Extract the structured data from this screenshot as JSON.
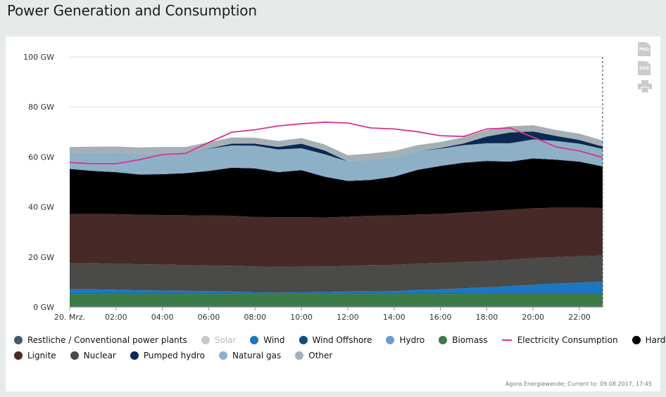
{
  "title": "Power Generation and Consumption",
  "source_note": "Agora Energiewende; Current to: 09.08.2017, 17:45",
  "export": {
    "png_label": "PNG",
    "svg_label": "SVG"
  },
  "chart_data": {
    "type": "area",
    "stacked": true,
    "title": "Power Generation and Consumption",
    "ylabel": "",
    "xlabel": "",
    "ylim": [
      0,
      100
    ],
    "yticks": [
      0,
      20,
      40,
      60,
      80,
      100
    ],
    "ytick_labels": [
      "0 GW",
      "20 GW",
      "40 GW",
      "60 GW",
      "80 GW",
      "100 GW"
    ],
    "xticks": [
      0,
      2,
      4,
      6,
      8,
      10,
      12,
      14,
      16,
      18,
      20,
      22
    ],
    "xtick_labels": [
      "20. Mrz.",
      "02:00",
      "04:00",
      "06:00",
      "08:00",
      "10:00",
      "12:00",
      "14:00",
      "16:00",
      "18:00",
      "20:00",
      "22:00"
    ],
    "x": [
      0,
      1,
      2,
      3,
      4,
      5,
      6,
      7,
      8,
      9,
      10,
      11,
      12,
      13,
      14,
      15,
      16,
      17,
      18,
      19,
      20,
      21,
      22,
      23
    ],
    "current_time_marker": 23,
    "series": [
      {
        "name": "Restliche / Conventional power plants",
        "color": "#48556b",
        "values": [
          0.3,
          0.3,
          0.3,
          0.3,
          0.3,
          0.3,
          0.3,
          0.3,
          0.3,
          0.3,
          0.3,
          0.3,
          0.3,
          0.3,
          0.3,
          0.3,
          0.3,
          0.3,
          0.3,
          0.3,
          0.3,
          0.3,
          0.3,
          0.3
        ]
      },
      {
        "name": "Biomass",
        "color": "#3c7a45",
        "values": [
          5,
          5,
          5,
          5,
          5,
          5,
          5,
          5,
          5,
          5,
          5,
          5,
          5,
          5,
          5,
          5,
          5,
          5,
          5,
          5,
          5,
          5,
          5,
          5
        ]
      },
      {
        "name": "Wind Offshore",
        "color": "#0f4c81",
        "values": [
          0.3,
          0.3,
          0.3,
          0.3,
          0.3,
          0.3,
          0.3,
          0.3,
          0.3,
          0.3,
          0.3,
          0.3,
          0.3,
          0.3,
          0.3,
          0.3,
          0.3,
          0.3,
          0.3,
          0.3,
          0.3,
          0.3,
          0.3,
          0.3
        ]
      },
      {
        "name": "Wind",
        "color": "#1c77c3",
        "values": [
          1.5,
          1.5,
          1.3,
          1.1,
          1.0,
          0.9,
          0.8,
          0.6,
          0.3,
          0.2,
          0.3,
          0.4,
          0.6,
          0.7,
          0.8,
          1.2,
          1.5,
          1.9,
          2.3,
          2.8,
          3.3,
          3.8,
          4.2,
          4.5
        ]
      },
      {
        "name": "Nuclear",
        "color": "#4a4a48",
        "values": [
          10.5,
          10.4,
          10.4,
          10.4,
          10.4,
          10.3,
          10.2,
          10.3,
          10.3,
          10.3,
          10.3,
          10.2,
          10.2,
          10.5,
          10.5,
          10.5,
          10.5,
          10.5,
          10.5,
          10.5,
          10.6,
          10.6,
          10.5,
          10.5
        ]
      },
      {
        "name": "Lignite",
        "color": "#472a28",
        "values": [
          19.6,
          19.7,
          19.8,
          19.8,
          19.8,
          19.9,
          20.0,
          20.0,
          19.8,
          19.8,
          19.7,
          19.6,
          19.7,
          19.7,
          19.7,
          19.7,
          19.6,
          19.8,
          19.9,
          20.0,
          20.0,
          19.7,
          19.4,
          19.0
        ]
      },
      {
        "name": "Hard coal",
        "color": "#000000",
        "values": [
          18.0,
          17.2,
          16.8,
          16.1,
          16.3,
          16.8,
          17.8,
          19.2,
          19.4,
          18.0,
          18.8,
          16.3,
          14.3,
          14.3,
          15.5,
          17.8,
          19.2,
          19.9,
          20.1,
          19.2,
          19.9,
          19.2,
          18.4,
          16.6
        ]
      },
      {
        "name": "Hydro",
        "color": "#6a9ccb",
        "values": [
          0.3,
          0.3,
          0.3,
          0.3,
          0.3,
          0.3,
          0.3,
          0.3,
          0.3,
          0.3,
          0.3,
          0.3,
          0.3,
          0.3,
          0.3,
          0.3,
          0.3,
          0.3,
          0.3,
          0.3,
          0.3,
          0.3,
          0.3,
          0.3
        ]
      },
      {
        "name": "Natural gas",
        "color": "#8eb0c6",
        "values": [
          6.2,
          7.0,
          7.5,
          7.9,
          8.0,
          7.6,
          8.6,
          8.6,
          8.8,
          8.8,
          8.5,
          8.7,
          7.5,
          7.9,
          7.6,
          7.2,
          6.6,
          6.7,
          6.8,
          7.1,
          7.3,
          7.2,
          6.9,
          6.7
        ]
      },
      {
        "name": "Pumped hydro",
        "color": "#0a2952",
        "values": [
          0.0,
          0.0,
          0.0,
          0.0,
          0.0,
          0.0,
          0.1,
          0.7,
          0.8,
          1.0,
          1.8,
          1.5,
          0.0,
          0.0,
          0.0,
          0.0,
          0.3,
          0.7,
          2.7,
          4.3,
          3.2,
          2.0,
          1.5,
          1.0
        ]
      },
      {
        "name": "Other",
        "color": "#a5afb6",
        "values": [
          2.3,
          2.4,
          2.5,
          2.6,
          2.6,
          2.6,
          2.5,
          2.5,
          2.4,
          2.4,
          2.3,
          2.4,
          2.5,
          2.4,
          2.4,
          2.4,
          2.4,
          2.5,
          2.5,
          2.5,
          2.5,
          2.4,
          2.5,
          2.4
        ]
      },
      {
        "name": "Solar",
        "color": "#c8c8c8",
        "values": [
          0,
          0,
          0,
          0,
          0,
          0,
          0,
          0,
          0,
          0,
          0,
          0,
          0,
          0,
          0,
          0,
          0,
          0,
          0,
          0,
          0,
          0,
          0,
          0
        ],
        "hidden": true
      },
      {
        "name": "Electricity Consumption",
        "type": "line",
        "color": "#d6338f",
        "values": [
          57.8,
          57.3,
          57.3,
          58.9,
          61.0,
          61.4,
          65.8,
          69.9,
          70.9,
          72.4,
          73.3,
          73.9,
          73.6,
          71.6,
          71.2,
          70.1,
          68.5,
          68.2,
          71.2,
          71.6,
          67.9,
          64.0,
          62.4,
          59.8
        ]
      }
    ]
  },
  "legend": {
    "row1": [
      {
        "label": "Restliche / Conventional power plants",
        "color": "#48556b",
        "marker": "dot",
        "enabled": true
      },
      {
        "label": "Solar",
        "color": "#c8c8c8",
        "marker": "dot",
        "enabled": false
      },
      {
        "label": "Wind",
        "color": "#1c77c3",
        "marker": "dot",
        "enabled": true
      },
      {
        "label": "Wind Offshore",
        "color": "#0f4c81",
        "marker": "dot",
        "enabled": true
      },
      {
        "label": "Hydro",
        "color": "#6a9ccb",
        "marker": "dot",
        "enabled": true
      },
      {
        "label": "Biomass",
        "color": "#3c7a45",
        "marker": "dot",
        "enabled": true
      },
      {
        "label": "Electricity Consumption",
        "color": "#d6338f",
        "marker": "line",
        "enabled": true
      },
      {
        "label": "Hard coal",
        "color": "#000000",
        "marker": "dot",
        "enabled": true
      }
    ],
    "row2": [
      {
        "label": "Lignite",
        "color": "#472a28",
        "marker": "dot",
        "enabled": true
      },
      {
        "label": "Nuclear",
        "color": "#4a4a48",
        "marker": "dot",
        "enabled": true
      },
      {
        "label": "Pumped hydro",
        "color": "#0a2952",
        "marker": "dot",
        "enabled": true
      },
      {
        "label": "Natural gas",
        "color": "#8eb0c6",
        "marker": "dot",
        "enabled": true
      },
      {
        "label": "Other",
        "color": "#a5afb6",
        "marker": "dot",
        "enabled": true
      }
    ]
  }
}
